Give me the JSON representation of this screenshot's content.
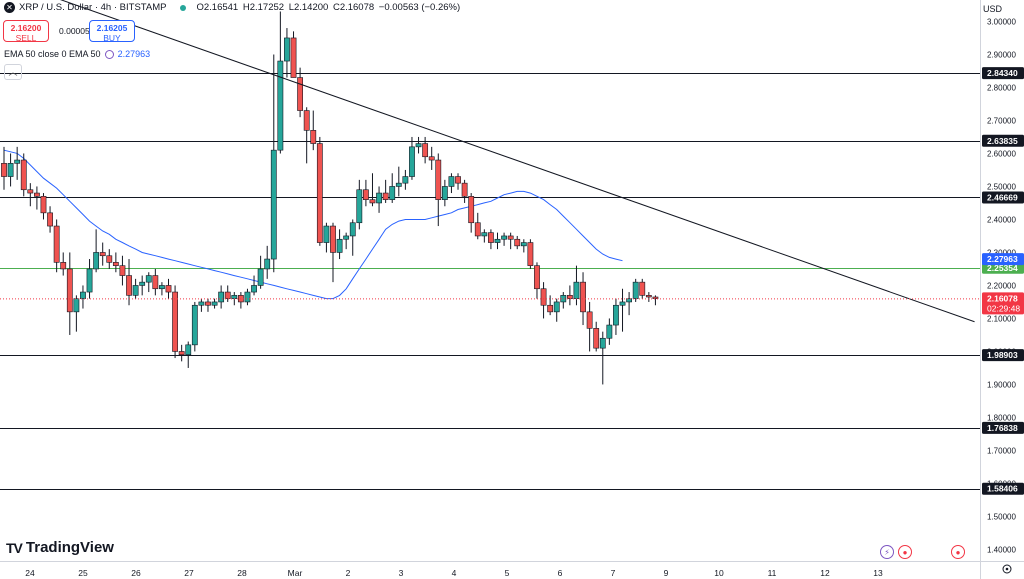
{
  "header": {
    "symbol_title": "XRP / U.S. Dollar · 4h · BITSTAMP",
    "open": "O2.16541",
    "high": "H2.17252",
    "low": "L2.14200",
    "close": "C2.16078",
    "change": "−0.00563 (−0.26%)"
  },
  "trade": {
    "sell_price": "2.16200",
    "sell_label": "SELL",
    "spread": "0.00005",
    "buy_price": "2.16205",
    "buy_label": "BUY"
  },
  "indicator": {
    "label": "EMA 50 close 0 EMA 50",
    "value": "2.27963"
  },
  "currency": "USD",
  "brand": "TradingView",
  "colors": {
    "up": "#26a69a",
    "down": "#ef5350",
    "ema": "#2962ff",
    "hline": "#131722",
    "green_line": "#4caf50",
    "price_line": "#f23645",
    "dark_label": "#131722"
  },
  "chart_data": {
    "type": "candlestick",
    "title": "XRP / U.S. Dollar · 4h · BITSTAMP",
    "ylim": [
      1.365,
      3.065
    ],
    "y_ticks": [
      "3.00000",
      "2.90000",
      "2.80000",
      "2.70000",
      "2.60000",
      "2.50000",
      "2.40000",
      "2.30000",
      "2.20000",
      "2.10000",
      "2.00000",
      "1.90000",
      "1.80000",
      "1.70000",
      "1.60000",
      "1.50000",
      "1.40000"
    ],
    "x_ticks": [
      "24",
      "25",
      "26",
      "27",
      "28",
      "Mar",
      "2",
      "3",
      "4",
      "5",
      "6",
      "7",
      "9",
      "10",
      "11",
      "12",
      "13"
    ],
    "horizontal_levels": [
      {
        "value": 2.8434,
        "label": "2.84340",
        "style": "dark"
      },
      {
        "value": 2.63835,
        "label": "2.63835",
        "style": "dark"
      },
      {
        "value": 2.46669,
        "label": "2.46669",
        "style": "dark"
      },
      {
        "value": 2.25354,
        "label": "2.25354",
        "style": "green"
      },
      {
        "value": 1.98903,
        "label": "1.98903",
        "style": "dark"
      },
      {
        "value": 1.76838,
        "label": "1.76838",
        "style": "dark"
      },
      {
        "value": 1.58406,
        "label": "1.58406",
        "style": "dark"
      }
    ],
    "ema_label": {
      "value": 2.27963,
      "label": "2.27963"
    },
    "current_price": {
      "value": 2.16078,
      "label": "2.16078",
      "countdown": "02:29:48"
    },
    "trendline": [
      [
        -0.5,
        3.13
      ],
      [
        147.5,
        2.09
      ]
    ],
    "ema_series": [
      2.61,
      2.605,
      2.6,
      2.585,
      2.565,
      2.545,
      2.525,
      2.51,
      2.495,
      2.475,
      2.455,
      2.435,
      2.415,
      2.395,
      2.38,
      2.365,
      2.355,
      2.34,
      2.33,
      2.32,
      2.31,
      2.3,
      2.295,
      2.29,
      2.285,
      2.28,
      2.275,
      2.27,
      2.265,
      2.26,
      2.255,
      2.25,
      2.245,
      2.24,
      2.235,
      2.23,
      2.225,
      2.22,
      2.215,
      2.21,
      2.205,
      2.2,
      2.195,
      2.19,
      2.185,
      2.18,
      2.175,
      2.17,
      2.165,
      2.16,
      2.16,
      2.17,
      2.19,
      2.22,
      2.25,
      2.28,
      2.31,
      2.34,
      2.37,
      2.385,
      2.395,
      2.4,
      2.4,
      2.4,
      2.4,
      2.405,
      2.41,
      2.415,
      2.42,
      2.43,
      2.435,
      2.44,
      2.445,
      2.45,
      2.455,
      2.465,
      2.475,
      2.48,
      2.485,
      2.485,
      2.48,
      2.47,
      2.46,
      2.445,
      2.43,
      2.41,
      2.39,
      2.37,
      2.35,
      2.33,
      2.31,
      2.295,
      2.285,
      2.28,
      2.275
    ],
    "candles": [
      [
        2.57,
        2.62,
        2.49,
        2.53
      ],
      [
        2.53,
        2.6,
        2.5,
        2.57
      ],
      [
        2.57,
        2.62,
        2.52,
        2.58
      ],
      [
        2.58,
        2.6,
        2.47,
        2.49
      ],
      [
        2.49,
        2.51,
        2.44,
        2.48
      ],
      [
        2.48,
        2.5,
        2.43,
        2.47
      ],
      [
        2.47,
        2.48,
        2.4,
        2.42
      ],
      [
        2.42,
        2.44,
        2.36,
        2.38
      ],
      [
        2.38,
        2.4,
        2.24,
        2.27
      ],
      [
        2.27,
        2.3,
        2.23,
        2.25
      ],
      [
        2.25,
        2.3,
        2.05,
        2.12
      ],
      [
        2.12,
        2.17,
        2.06,
        2.16
      ],
      [
        2.16,
        2.2,
        2.13,
        2.18
      ],
      [
        2.18,
        2.28,
        2.16,
        2.25
      ],
      [
        2.25,
        2.37,
        2.24,
        2.3
      ],
      [
        2.3,
        2.33,
        2.26,
        2.29
      ],
      [
        2.29,
        2.31,
        2.25,
        2.27
      ],
      [
        2.27,
        2.3,
        2.24,
        2.26
      ],
      [
        2.26,
        2.29,
        2.2,
        2.23
      ],
      [
        2.23,
        2.28,
        2.14,
        2.17
      ],
      [
        2.17,
        2.22,
        2.16,
        2.2
      ],
      [
        2.2,
        2.23,
        2.17,
        2.21
      ],
      [
        2.21,
        2.24,
        2.18,
        2.23
      ],
      [
        2.23,
        2.25,
        2.17,
        2.19
      ],
      [
        2.19,
        2.21,
        2.17,
        2.2
      ],
      [
        2.2,
        2.22,
        2.16,
        2.18
      ],
      [
        2.18,
        2.2,
        1.98,
        2.0
      ],
      [
        2.0,
        2.02,
        1.97,
        1.99
      ],
      [
        1.99,
        2.03,
        1.95,
        2.02
      ],
      [
        2.02,
        2.15,
        2.0,
        2.14
      ],
      [
        2.14,
        2.16,
        2.12,
        2.15
      ],
      [
        2.15,
        2.16,
        2.12,
        2.14
      ],
      [
        2.14,
        2.16,
        2.13,
        2.15
      ],
      [
        2.15,
        2.2,
        2.13,
        2.18
      ],
      [
        2.18,
        2.2,
        2.15,
        2.16
      ],
      [
        2.16,
        2.18,
        2.14,
        2.17
      ],
      [
        2.17,
        2.18,
        2.13,
        2.15
      ],
      [
        2.15,
        2.19,
        2.14,
        2.18
      ],
      [
        2.18,
        2.23,
        2.17,
        2.2
      ],
      [
        2.2,
        2.29,
        2.19,
        2.25
      ],
      [
        2.25,
        2.32,
        2.22,
        2.28
      ],
      [
        2.28,
        2.9,
        2.24,
        2.61
      ],
      [
        2.61,
        3.03,
        2.6,
        2.88
      ],
      [
        2.88,
        2.98,
        2.83,
        2.95
      ],
      [
        2.95,
        2.97,
        2.83,
        2.83
      ],
      [
        2.83,
        2.86,
        2.71,
        2.73
      ],
      [
        2.73,
        2.74,
        2.57,
        2.67
      ],
      [
        2.67,
        2.73,
        2.61,
        2.63
      ],
      [
        2.63,
        2.65,
        2.32,
        2.33
      ],
      [
        2.33,
        2.39,
        2.3,
        2.38
      ],
      [
        2.38,
        2.39,
        2.21,
        2.3
      ],
      [
        2.3,
        2.37,
        2.28,
        2.34
      ],
      [
        2.34,
        2.36,
        2.31,
        2.35
      ],
      [
        2.35,
        2.4,
        2.29,
        2.39
      ],
      [
        2.39,
        2.52,
        2.37,
        2.49
      ],
      [
        2.49,
        2.52,
        2.44,
        2.46
      ],
      [
        2.46,
        2.54,
        2.44,
        2.45
      ],
      [
        2.45,
        2.5,
        2.42,
        2.48
      ],
      [
        2.48,
        2.52,
        2.45,
        2.46
      ],
      [
        2.46,
        2.54,
        2.45,
        2.5
      ],
      [
        2.5,
        2.56,
        2.47,
        2.51
      ],
      [
        2.51,
        2.55,
        2.49,
        2.53
      ],
      [
        2.53,
        2.65,
        2.52,
        2.62
      ],
      [
        2.62,
        2.65,
        2.6,
        2.63
      ],
      [
        2.63,
        2.65,
        2.57,
        2.59
      ],
      [
        2.59,
        2.62,
        2.55,
        2.58
      ],
      [
        2.58,
        2.6,
        2.38,
        2.46
      ],
      [
        2.46,
        2.52,
        2.44,
        2.5
      ],
      [
        2.5,
        2.54,
        2.48,
        2.53
      ],
      [
        2.53,
        2.54,
        2.49,
        2.51
      ],
      [
        2.51,
        2.52,
        2.45,
        2.47
      ],
      [
        2.47,
        2.48,
        2.36,
        2.39
      ],
      [
        2.39,
        2.42,
        2.34,
        2.35
      ],
      [
        2.35,
        2.37,
        2.33,
        2.36
      ],
      [
        2.36,
        2.37,
        2.31,
        2.33
      ],
      [
        2.33,
        2.36,
        2.31,
        2.34
      ],
      [
        2.34,
        2.36,
        2.32,
        2.35
      ],
      [
        2.35,
        2.36,
        2.31,
        2.34
      ],
      [
        2.34,
        2.35,
        2.31,
        2.32
      ],
      [
        2.32,
        2.34,
        2.3,
        2.33
      ],
      [
        2.33,
        2.34,
        2.25,
        2.26
      ],
      [
        2.26,
        2.27,
        2.16,
        2.19
      ],
      [
        2.19,
        2.21,
        2.1,
        2.14
      ],
      [
        2.14,
        2.17,
        2.11,
        2.12
      ],
      [
        2.12,
        2.16,
        2.09,
        2.15
      ],
      [
        2.15,
        2.18,
        2.13,
        2.17
      ],
      [
        2.17,
        2.2,
        2.14,
        2.16
      ],
      [
        2.16,
        2.26,
        2.14,
        2.21
      ],
      [
        2.21,
        2.24,
        2.08,
        2.12
      ],
      [
        2.12,
        2.15,
        2.0,
        2.07
      ],
      [
        2.07,
        2.09,
        2.0,
        2.01
      ],
      [
        2.01,
        2.06,
        1.9,
        2.04
      ],
      [
        2.04,
        2.1,
        2.02,
        2.08
      ],
      [
        2.08,
        2.16,
        2.05,
        2.14
      ],
      [
        2.14,
        2.19,
        2.06,
        2.15
      ],
      [
        2.15,
        2.18,
        2.11,
        2.16
      ],
      [
        2.16,
        2.22,
        2.15,
        2.21
      ],
      [
        2.21,
        2.22,
        2.16,
        2.17
      ],
      [
        2.17,
        2.18,
        2.15,
        2.165
      ],
      [
        2.165,
        2.17,
        2.14,
        2.16
      ]
    ]
  }
}
